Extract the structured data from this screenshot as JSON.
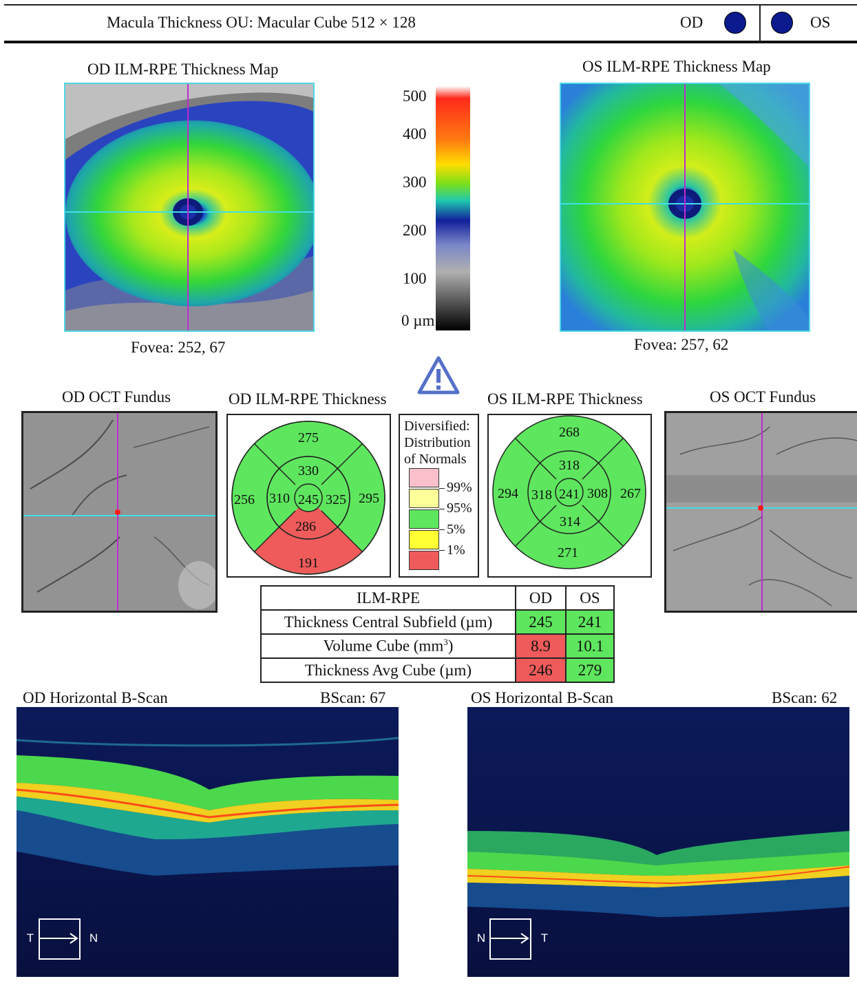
{
  "header": {
    "title": "Macula Thickness OU: Macular Cube 512 × 128",
    "od_label": "OD",
    "os_label": "OS",
    "eye_dot_color": "#0b1a8c"
  },
  "od_map": {
    "title": "OD ILM-RPE Thickness Map",
    "fovea": "Fovea: 252, 67"
  },
  "os_map": {
    "title": "OS ILM-RPE Thickness Map",
    "fovea": "Fovea: 257, 62"
  },
  "colorbar": {
    "ticks": [
      "500",
      "400",
      "300",
      "200",
      "100",
      "0 µm"
    ],
    "colors": [
      "#ffffff",
      "#ff2a1a",
      "#ffcc00",
      "#2ecc2e",
      "#1a3fcc",
      "#9a9a9a",
      "#000000"
    ]
  },
  "warning_icon": "warning-triangle-icon",
  "od_fundus": {
    "title": "OD OCT Fundus"
  },
  "os_fundus": {
    "title": "OS OCT Fundus"
  },
  "od_grid": {
    "title": "OD ILM-RPE Thickness",
    "center": "245",
    "inner": {
      "superior": "330",
      "temporal": "310",
      "nasal": "325",
      "inferior": "286"
    },
    "outer": {
      "superior": "275",
      "temporal": "256",
      "nasal": "295",
      "inferior": "191"
    }
  },
  "os_grid": {
    "title": "OS ILM-RPE Thickness",
    "center": "241",
    "inner": {
      "superior": "318",
      "temporal": "318",
      "nasal": "308",
      "inferior": "314"
    },
    "outer": {
      "superior": "268",
      "temporal": "294",
      "nasal": "267",
      "inferior": "271"
    }
  },
  "legend": {
    "title_lines": [
      "Diversified:",
      "Distribution",
      "of Normals"
    ],
    "percentiles": [
      "99%",
      "95%",
      "5%",
      "1%"
    ],
    "swatch_colors": [
      "#f9c0cb",
      "#ffff99",
      "#5ee65e",
      "#ffff33",
      "#ef5b5b"
    ]
  },
  "metrics_table": {
    "header": {
      "label": "ILM-RPE",
      "od": "OD",
      "os": "OS"
    },
    "rows": [
      {
        "label": "Thickness Central Subfield (µm)",
        "od": "245",
        "os": "241"
      },
      {
        "label_main": "Volume Cube (mm",
        "label_sup": "3",
        "label_end": ")",
        "od": "8.9",
        "os": "10.1"
      },
      {
        "label": "Thickness Avg Cube (µm)",
        "od": "246",
        "os": "279"
      }
    ]
  },
  "od_bscan": {
    "title": "OD Horizontal B-Scan",
    "bscan_label": "BScan: 67",
    "orient_left": "T",
    "orient_right": "N"
  },
  "os_bscan": {
    "title": "OS Horizontal B-Scan",
    "bscan_label": "BScan: 62",
    "orient_left": "N",
    "orient_right": "T"
  }
}
